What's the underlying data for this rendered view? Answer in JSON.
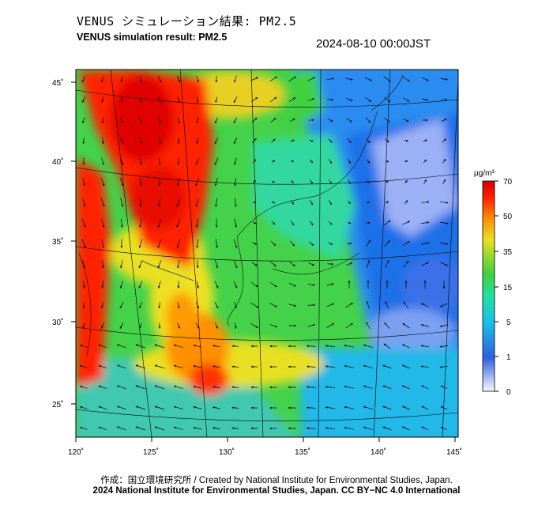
{
  "header": {
    "title_jp": "VENUS シミュレーション結果: PM2.5",
    "title_en": "VENUS simulation result: PM2.5",
    "timestamp": "2024-08-10 00:00JST"
  },
  "map": {
    "lon_ticks": [
      "120˚",
      "125˚",
      "130˚",
      "135˚",
      "140˚",
      "145˚"
    ],
    "lat_ticks": [
      "45˚",
      "40˚",
      "35˚",
      "30˚",
      "25˚"
    ],
    "field": "PM2.5 surface concentration",
    "overlay": "wind vectors"
  },
  "colorbar": {
    "unit": "µg/m³",
    "ticks": [
      "70",
      "50",
      "35",
      "15",
      "5",
      "1",
      "0"
    ],
    "colors": [
      "#f8f8ff",
      "#3060e0",
      "#18c0e8",
      "#20e0a0",
      "#40d040",
      "#e8e020",
      "#ff9000",
      "#ff2000",
      "#d80000"
    ]
  },
  "footer": {
    "credit_line1": "作成：国立環境研究所 / Created by National Institute for Environmental Studies, Japan.",
    "credit_line2": "2024 National Institute for Environmental Studies, Japan. CC BY−NC 4.0 International"
  }
}
